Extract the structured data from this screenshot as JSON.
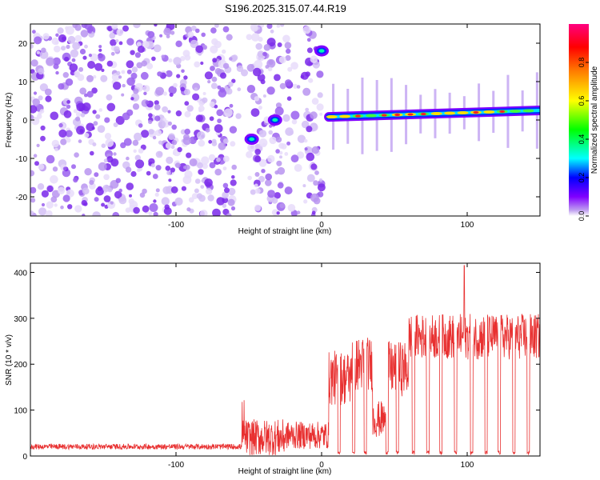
{
  "title": "S196.2025.315.07.44.R19",
  "chart_data": [
    {
      "type": "heatmap",
      "name": "spectrogram",
      "xlabel": "Height of straight line (km)",
      "ylabel": "Frequency (Hz)",
      "xlim": [
        -200,
        150
      ],
      "ylim": [
        -25,
        25
      ],
      "xticks": [
        -100,
        0,
        100
      ],
      "yticks": [
        -20,
        -10,
        0,
        10,
        20
      ],
      "colorbar": {
        "label": "Normalized spectral amplitude",
        "range": [
          0,
          1
        ],
        "ticks": [
          0.0,
          0.2,
          0.4,
          0.6,
          0.8
        ],
        "tick_labels": [
          "0.0",
          "0.2",
          "0.4",
          "0.6",
          "0.8"
        ],
        "colormap": [
          "#ffffff",
          "#c0a0f0",
          "#8000ff",
          "#0000ff",
          "#00ffff",
          "#00ff00",
          "#ffff00",
          "#ff8000",
          "#ff0000",
          "#ff0080"
        ]
      },
      "features": [
        {
          "label": "noise",
          "x_range": [
            -200,
            0
          ],
          "freq_range": [
            -25,
            25
          ],
          "amplitude": 0.1
        },
        {
          "label": "blob",
          "x": -48,
          "freq": -5,
          "amplitude": 0.4
        },
        {
          "label": "blob",
          "x": -32,
          "freq": 0,
          "amplitude": 0.3
        },
        {
          "label": "blob",
          "x": 0,
          "freq": 18,
          "amplitude": 0.4
        },
        {
          "label": "carrier",
          "x_range": [
            5,
            150
          ],
          "freq_start": 0.8,
          "freq_end": 2.5,
          "amplitude": 0.9
        }
      ]
    },
    {
      "type": "line",
      "name": "snr",
      "xlabel": "Height of straight line (km)",
      "ylabel": "SNR (10 * v/v)",
      "xlim": [
        -200,
        150
      ],
      "ylim": [
        0,
        420
      ],
      "xticks": [
        -100,
        0,
        100
      ],
      "yticks": [
        0,
        100,
        200,
        300,
        400
      ],
      "color": "#e83030",
      "segments": [
        {
          "x0": -200,
          "x1": -55,
          "base": 18,
          "noise": 12
        },
        {
          "x0": -55,
          "x1": -25,
          "base": 40,
          "noise": 40
        },
        {
          "x0": -25,
          "x1": 5,
          "base": 45,
          "noise": 30
        },
        {
          "x0": 5,
          "x1": 20,
          "base": 170,
          "noise": 60
        },
        {
          "x0": 20,
          "x1": 35,
          "base": 200,
          "noise": 60
        },
        {
          "x0": 35,
          "x1": 45,
          "base": 80,
          "noise": 40
        },
        {
          "x0": 45,
          "x1": 60,
          "base": 190,
          "noise": 60
        },
        {
          "x0": 60,
          "x1": 150,
          "base": 260,
          "noise": 50
        }
      ],
      "dropouts_x": [
        12,
        22,
        30,
        45,
        52,
        63,
        73,
        82,
        92,
        103,
        113,
        122,
        132,
        142
      ],
      "peak": {
        "x": 98,
        "y": 415
      }
    }
  ]
}
